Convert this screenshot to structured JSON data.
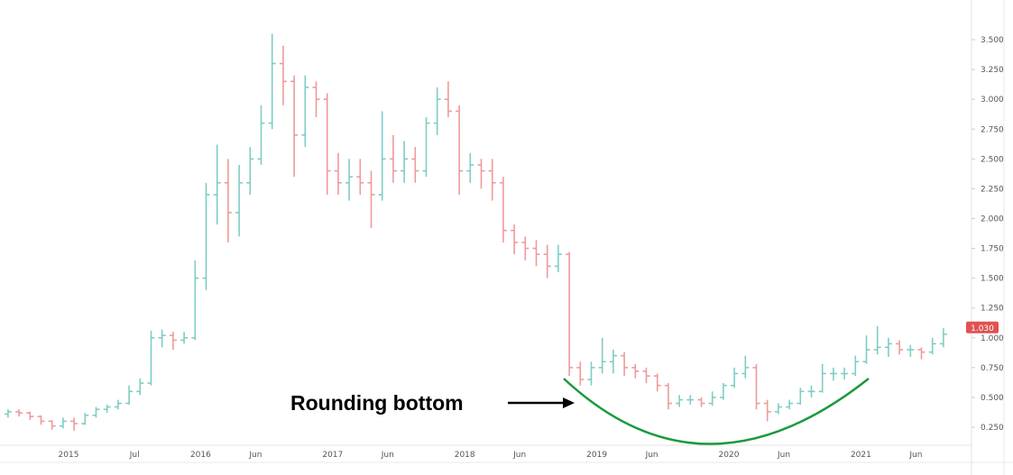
{
  "chart_data": {
    "type": "ohlc",
    "title": "",
    "xlabel": "",
    "ylabel": "",
    "ylim": [
      0.1,
      3.65
    ],
    "y_ticks": [
      "0.250",
      "0.500",
      "0.750",
      "1.000",
      "1.250",
      "1.500",
      "1.750",
      "2.000",
      "2.250",
      "2.500",
      "2.750",
      "3.000",
      "3.250",
      "3.500"
    ],
    "y_tick_values": [
      0.25,
      0.5,
      0.75,
      1.0,
      1.25,
      1.5,
      1.75,
      2.0,
      2.25,
      2.5,
      2.75,
      3.0,
      3.25,
      3.5
    ],
    "x_ticks": [
      {
        "label": "2015",
        "date": "2015-01"
      },
      {
        "label": "Jul",
        "date": "2015-07"
      },
      {
        "label": "2016",
        "date": "2016-01"
      },
      {
        "label": "Jun",
        "date": "2016-06"
      },
      {
        "label": "2017",
        "date": "2017-01"
      },
      {
        "label": "Jun",
        "date": "2017-06"
      },
      {
        "label": "2018",
        "date": "2018-01"
      },
      {
        "label": "Jun",
        "date": "2018-06"
      },
      {
        "label": "2019",
        "date": "2019-01"
      },
      {
        "label": "Jun",
        "date": "2019-06"
      },
      {
        "label": "2020",
        "date": "2020-01"
      },
      {
        "label": "Jun",
        "date": "2020-06"
      },
      {
        "label": "2021",
        "date": "2021-01"
      },
      {
        "label": "Jun",
        "date": "2021-06"
      }
    ],
    "last_price_label": "1.030",
    "grid": false,
    "colors": {
      "up": "#7fcdc4",
      "down": "#ef9a9a",
      "last_price": "#e05252",
      "annotation_curve": "#1a9a3c"
    },
    "annotation": {
      "text": "Rounding bottom",
      "target_start": "2018-10",
      "target_end": "2021-01"
    },
    "bars": [
      [
        "2014-07",
        0.36,
        0.4,
        0.33,
        0.38
      ],
      [
        "2014-08",
        0.38,
        0.4,
        0.34,
        0.37
      ],
      [
        "2014-09",
        0.37,
        0.38,
        0.31,
        0.34
      ],
      [
        "2014-10",
        0.34,
        0.35,
        0.27,
        0.3
      ],
      [
        "2014-11",
        0.3,
        0.31,
        0.23,
        0.26
      ],
      [
        "2014-12",
        0.26,
        0.33,
        0.24,
        0.3
      ],
      [
        "2015-01",
        0.3,
        0.33,
        0.22,
        0.28
      ],
      [
        "2015-02",
        0.28,
        0.37,
        0.27,
        0.35
      ],
      [
        "2015-03",
        0.35,
        0.42,
        0.33,
        0.4
      ],
      [
        "2015-04",
        0.4,
        0.44,
        0.37,
        0.42
      ],
      [
        "2015-05",
        0.42,
        0.48,
        0.4,
        0.45
      ],
      [
        "2015-06",
        0.45,
        0.6,
        0.44,
        0.55
      ],
      [
        "2015-07",
        0.55,
        0.66,
        0.52,
        0.62
      ],
      [
        "2015-08",
        0.62,
        1.06,
        0.6,
        1.0
      ],
      [
        "2015-09",
        1.0,
        1.07,
        0.92,
        1.02
      ],
      [
        "2015-10",
        1.02,
        1.05,
        0.9,
        0.98
      ],
      [
        "2015-11",
        0.98,
        1.05,
        0.95,
        1.0
      ],
      [
        "2015-12",
        1.0,
        1.65,
        0.98,
        1.5
      ],
      [
        "2016-01",
        1.5,
        2.3,
        1.4,
        2.2
      ],
      [
        "2016-02",
        2.2,
        2.62,
        1.95,
        2.3
      ],
      [
        "2016-03",
        2.3,
        2.5,
        1.8,
        2.05
      ],
      [
        "2016-04",
        2.05,
        2.45,
        1.85,
        2.3
      ],
      [
        "2016-05",
        2.3,
        2.6,
        2.2,
        2.5
      ],
      [
        "2016-06",
        2.5,
        2.95,
        2.45,
        2.8
      ],
      [
        "2016-07",
        2.8,
        3.55,
        2.75,
        3.3
      ],
      [
        "2016-08",
        3.3,
        3.45,
        2.95,
        3.15
      ],
      [
        "2016-09",
        3.15,
        3.2,
        2.35,
        2.7
      ],
      [
        "2016-10",
        2.7,
        3.2,
        2.6,
        3.1
      ],
      [
        "2016-11",
        3.1,
        3.15,
        2.85,
        3.0
      ],
      [
        "2016-12",
        3.0,
        3.05,
        2.2,
        2.4
      ],
      [
        "2017-01",
        2.4,
        2.55,
        2.2,
        2.3
      ],
      [
        "2017-02",
        2.3,
        2.5,
        2.15,
        2.35
      ],
      [
        "2017-03",
        2.35,
        2.5,
        2.2,
        2.3
      ],
      [
        "2017-04",
        2.3,
        2.4,
        1.92,
        2.2
      ],
      [
        "2017-05",
        2.2,
        2.9,
        2.15,
        2.5
      ],
      [
        "2017-06",
        2.5,
        2.7,
        2.3,
        2.4
      ],
      [
        "2017-07",
        2.4,
        2.65,
        2.3,
        2.5
      ],
      [
        "2017-08",
        2.5,
        2.6,
        2.3,
        2.4
      ],
      [
        "2017-09",
        2.4,
        2.85,
        2.35,
        2.8
      ],
      [
        "2017-10",
        2.8,
        3.1,
        2.7,
        3.0
      ],
      [
        "2017-11",
        3.0,
        3.15,
        2.85,
        2.9
      ],
      [
        "2017-12",
        2.9,
        2.95,
        2.2,
        2.4
      ],
      [
        "2018-01",
        2.4,
        2.55,
        2.3,
        2.45
      ],
      [
        "2018-02",
        2.45,
        2.5,
        2.25,
        2.4
      ],
      [
        "2018-03",
        2.4,
        2.5,
        2.15,
        2.3
      ],
      [
        "2018-04",
        2.3,
        2.35,
        1.8,
        1.9
      ],
      [
        "2018-05",
        1.9,
        1.95,
        1.7,
        1.8
      ],
      [
        "2018-06",
        1.8,
        1.85,
        1.65,
        1.75
      ],
      [
        "2018-07",
        1.75,
        1.82,
        1.6,
        1.7
      ],
      [
        "2018-08",
        1.7,
        1.78,
        1.5,
        1.6
      ],
      [
        "2018-09",
        1.6,
        1.78,
        1.55,
        1.7
      ],
      [
        "2018-10",
        1.7,
        1.72,
        0.68,
        0.75
      ],
      [
        "2018-11",
        0.75,
        0.8,
        0.6,
        0.65
      ],
      [
        "2018-12",
        0.65,
        0.8,
        0.6,
        0.75
      ],
      [
        "2019-01",
        0.75,
        1.0,
        0.7,
        0.8
      ],
      [
        "2019-02",
        0.8,
        0.9,
        0.7,
        0.85
      ],
      [
        "2019-03",
        0.85,
        0.88,
        0.68,
        0.75
      ],
      [
        "2019-04",
        0.75,
        0.78,
        0.66,
        0.72
      ],
      [
        "2019-05",
        0.72,
        0.75,
        0.62,
        0.68
      ],
      [
        "2019-06",
        0.68,
        0.7,
        0.55,
        0.6
      ],
      [
        "2019-07",
        0.6,
        0.62,
        0.4,
        0.45
      ],
      [
        "2019-08",
        0.45,
        0.52,
        0.42,
        0.48
      ],
      [
        "2019-09",
        0.48,
        0.52,
        0.44,
        0.48
      ],
      [
        "2019-10",
        0.48,
        0.5,
        0.42,
        0.45
      ],
      [
        "2019-11",
        0.45,
        0.55,
        0.43,
        0.5
      ],
      [
        "2019-12",
        0.5,
        0.62,
        0.48,
        0.6
      ],
      [
        "2020-01",
        0.6,
        0.75,
        0.58,
        0.7
      ],
      [
        "2020-02",
        0.7,
        0.85,
        0.66,
        0.75
      ],
      [
        "2020-03",
        0.75,
        0.78,
        0.4,
        0.45
      ],
      [
        "2020-04",
        0.45,
        0.48,
        0.3,
        0.38
      ],
      [
        "2020-05",
        0.38,
        0.45,
        0.36,
        0.42
      ],
      [
        "2020-06",
        0.42,
        0.48,
        0.4,
        0.45
      ],
      [
        "2020-07",
        0.45,
        0.58,
        0.44,
        0.55
      ],
      [
        "2020-08",
        0.55,
        0.6,
        0.5,
        0.55
      ],
      [
        "2020-09",
        0.55,
        0.78,
        0.54,
        0.7
      ],
      [
        "2020-10",
        0.7,
        0.75,
        0.64,
        0.7
      ],
      [
        "2020-11",
        0.7,
        0.75,
        0.65,
        0.7
      ],
      [
        "2020-12",
        0.7,
        0.85,
        0.68,
        0.8
      ],
      [
        "2021-01",
        0.8,
        1.02,
        0.78,
        0.9
      ],
      [
        "2021-02",
        0.9,
        1.1,
        0.86,
        0.92
      ],
      [
        "2021-03",
        0.92,
        1.0,
        0.84,
        0.95
      ],
      [
        "2021-04",
        0.95,
        0.98,
        0.86,
        0.9
      ],
      [
        "2021-05",
        0.9,
        0.94,
        0.84,
        0.9
      ],
      [
        "2021-06",
        0.9,
        0.92,
        0.82,
        0.88
      ],
      [
        "2021-07",
        0.88,
        1.0,
        0.86,
        0.95
      ],
      [
        "2021-08",
        0.95,
        1.08,
        0.92,
        1.03
      ]
    ]
  }
}
